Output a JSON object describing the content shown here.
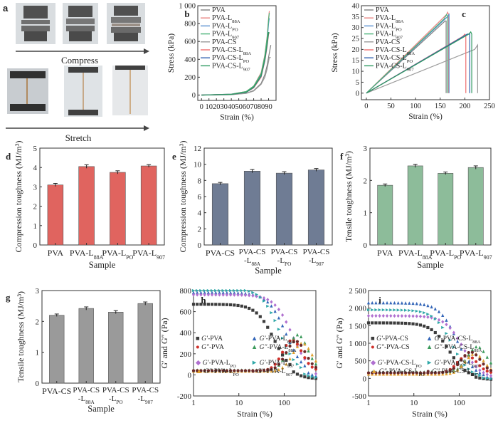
{
  "panel_a": {
    "label": "a",
    "compress_label": "Compress",
    "stretch_label": "Stretch"
  },
  "chart_data": [
    {
      "id": "b",
      "type": "line",
      "panel_label": "b",
      "xlabel": "Strain (%)",
      "ylabel": "Stress (kPa)",
      "xlim": [
        -5,
        100
      ],
      "ylim": [
        -60,
        1000
      ],
      "xticks": [
        0,
        10,
        20,
        30,
        40,
        50,
        60,
        70,
        80,
        90
      ],
      "yticks": [
        0,
        200,
        400,
        600,
        800,
        1000
      ],
      "ytick_labels": [
        "0",
        "200",
        "400",
        "600",
        "800",
        "1 000"
      ],
      "legend_position": "top-left",
      "legend": [
        {
          "base": "PVA",
          "sub": ""
        },
        {
          "base": "PVA-L",
          "sub": "88A"
        },
        {
          "base": "PVA-L",
          "sub": "PO"
        },
        {
          "base": "PVA-L",
          "sub": "907"
        },
        {
          "base": "PVA-CS",
          "sub": ""
        },
        {
          "base": "PVA-CS-L",
          "sub": "88A"
        },
        {
          "base": "PVA-CS-L",
          "sub": "PO"
        },
        {
          "base": "PVA-CS-L",
          "sub": "907"
        }
      ],
      "series": [
        {
          "name": "PVA",
          "color": "#7f7f7f",
          "x": [
            0,
            40,
            60,
            70,
            80,
            85,
            88,
            91,
            93
          ],
          "y": [
            0,
            5,
            20,
            50,
            130,
            230,
            330,
            470,
            560
          ]
        },
        {
          "name": "PVA-L88A",
          "color": "#e8817f",
          "x": [
            0,
            40,
            60,
            70,
            80,
            85,
            88,
            90,
            91
          ],
          "y": [
            0,
            10,
            40,
            100,
            250,
            450,
            650,
            860,
            940
          ]
        },
        {
          "name": "PVA-LPO",
          "color": "#5a8fd0",
          "x": [
            0,
            40,
            60,
            70,
            80,
            85,
            88,
            90,
            91
          ],
          "y": [
            0,
            10,
            35,
            90,
            230,
            420,
            600,
            800,
            860
          ]
        },
        {
          "name": "PVA-L907",
          "color": "#4db37a",
          "x": [
            0,
            40,
            60,
            70,
            80,
            85,
            88,
            90,
            91
          ],
          "y": [
            0,
            10,
            40,
            100,
            240,
            440,
            640,
            840,
            920
          ]
        },
        {
          "name": "PVA-CS",
          "color": "#9a9a9a",
          "x": [
            0,
            40,
            60,
            70,
            80,
            85,
            88,
            91,
            93
          ],
          "y": [
            0,
            5,
            18,
            45,
            120,
            200,
            290,
            420,
            420
          ]
        },
        {
          "name": "PVA-CS-L88A",
          "color": "#f07070",
          "x": [
            0,
            40,
            60,
            70,
            80,
            85,
            88,
            90,
            91
          ],
          "y": [
            0,
            8,
            30,
            80,
            200,
            380,
            540,
            680,
            690
          ]
        },
        {
          "name": "PVA-CS-LPO",
          "color": "#3060b0",
          "x": [
            0,
            40,
            60,
            70,
            80,
            85,
            88,
            90,
            91
          ],
          "y": [
            0,
            8,
            30,
            85,
            210,
            390,
            560,
            700,
            700
          ]
        },
        {
          "name": "PVA-CS-L907",
          "color": "#2e9a60",
          "x": [
            0,
            40,
            60,
            70,
            80,
            85,
            88,
            90,
            91
          ],
          "y": [
            0,
            8,
            32,
            88,
            215,
            400,
            570,
            700,
            700
          ]
        }
      ]
    },
    {
      "id": "c",
      "type": "line",
      "panel_label": "c",
      "xlabel": "Strain (%)",
      "ylabel": "Stress (kPa)",
      "xlim": [
        -10,
        250
      ],
      "ylim": [
        -3,
        40
      ],
      "xticks": [
        0,
        50,
        100,
        150,
        200,
        250
      ],
      "yticks": [
        0,
        5,
        10,
        15,
        20,
        25,
        30,
        35,
        40
      ],
      "legend_position": "top-left",
      "legend": [
        {
          "base": "PVA",
          "sub": ""
        },
        {
          "base": "PVA-L",
          "sub": "88A"
        },
        {
          "base": "PVA-L",
          "sub": "PO"
        },
        {
          "base": "PVA-L",
          "sub": "907"
        },
        {
          "base": "PVA-CS",
          "sub": ""
        },
        {
          "base": "PVA-CS-L",
          "sub": "88A"
        },
        {
          "base": "PVA-CS-L",
          "sub": "PO"
        },
        {
          "base": "PVA-CS-L",
          "sub": "907"
        }
      ],
      "series": [
        {
          "name": "PVA",
          "color": "#7f7f7f",
          "x": [
            0,
            160,
            162,
            162
          ],
          "y": [
            0,
            33,
            33,
            0
          ]
        },
        {
          "name": "PVA-L88A",
          "color": "#e8817f",
          "x": [
            0,
            163,
            165,
            167,
            167
          ],
          "y": [
            0,
            36,
            37,
            36,
            0
          ]
        },
        {
          "name": "PVA-LPO",
          "color": "#5a8fd0",
          "x": [
            0,
            165,
            168,
            168
          ],
          "y": [
            0,
            35,
            36,
            0
          ]
        },
        {
          "name": "PVA-L907",
          "color": "#4db37a",
          "x": [
            0,
            158,
            163,
            165,
            165
          ],
          "y": [
            0,
            34,
            36,
            35,
            0
          ]
        },
        {
          "name": "PVA-CS",
          "color": "#9a9a9a",
          "x": [
            0,
            220,
            226,
            226
          ],
          "y": [
            0,
            20,
            22,
            0
          ]
        },
        {
          "name": "PVA-CS-L88A",
          "color": "#f07070",
          "x": [
            0,
            196,
            200,
            202,
            202
          ],
          "y": [
            0,
            26,
            27,
            26,
            0
          ]
        },
        {
          "name": "PVA-CS-LPO",
          "color": "#3060b0",
          "x": [
            0,
            205,
            210,
            210
          ],
          "y": [
            0,
            27,
            27,
            0
          ]
        },
        {
          "name": "PVA-CS-L907",
          "color": "#2e9a60",
          "x": [
            0,
            208,
            212,
            214,
            214
          ],
          "y": [
            0,
            27,
            28,
            27,
            0
          ]
        }
      ]
    },
    {
      "id": "d",
      "type": "bar",
      "panel_label": "d",
      "ylabel": "Compression toughness (MJ/m³)",
      "xlabel": "Sample",
      "ylim": [
        0,
        5
      ],
      "yticks": [
        0,
        1,
        2,
        3,
        4,
        5
      ],
      "color": "#e0645f",
      "categories": [
        {
          "base": "PVA",
          "sub": ""
        },
        {
          "base": "PVA-L",
          "sub": "88A"
        },
        {
          "base": "PVA-L",
          "sub": "PO"
        },
        {
          "base": "PVA-L",
          "sub": "907"
        }
      ],
      "values": [
        3.1,
        4.05,
        3.75,
        4.08
      ],
      "errors": [
        0.08,
        0.09,
        0.08,
        0.07
      ]
    },
    {
      "id": "e",
      "type": "bar",
      "panel_label": "e",
      "ylabel": "Compression toughness (MJ/m³)",
      "xlabel": "Sample",
      "ylim": [
        0,
        12
      ],
      "yticks": [
        0,
        2,
        4,
        6,
        8,
        10,
        12
      ],
      "color": "#6f7c94",
      "categories": [
        {
          "base": "PVA-CS",
          "sub": ""
        },
        {
          "base": "PVA-CS",
          "line2": "-L",
          "sub": "88A"
        },
        {
          "base": "PVA-CS",
          "line2": "-L",
          "sub": "PO"
        },
        {
          "base": "PVA-CS",
          "line2": "-L",
          "sub": "907"
        }
      ],
      "values": [
        7.6,
        9.15,
        8.9,
        9.3
      ],
      "errors": [
        0.15,
        0.2,
        0.18,
        0.17
      ]
    },
    {
      "id": "f",
      "type": "bar",
      "panel_label": "f",
      "ylabel": "Tensile toughness (MJ/m³)",
      "xlabel": "Sample",
      "ylim": [
        0,
        3
      ],
      "yticks": [
        0,
        1,
        2,
        3
      ],
      "color": "#8dbc9a",
      "categories": [
        {
          "base": "PVA",
          "sub": ""
        },
        {
          "base": "PVA-L",
          "sub": "88A"
        },
        {
          "base": "PVA-L",
          "sub": "PO"
        },
        {
          "base": "PVA-L",
          "sub": "907"
        }
      ],
      "values": [
        1.85,
        2.45,
        2.22,
        2.4
      ],
      "errors": [
        0.04,
        0.05,
        0.04,
        0.05
      ]
    },
    {
      "id": "g",
      "type": "bar",
      "panel_label": "g",
      "ylabel": "Tensile toughness (MJ/m³)",
      "xlabel": "Sample",
      "ylim": [
        0,
        3
      ],
      "yticks": [
        0,
        1,
        2,
        3
      ],
      "color": "#9a9a9a",
      "categories": [
        {
          "base": "PVA-CS",
          "sub": ""
        },
        {
          "base": "PVA-CS",
          "line2": "-L",
          "sub": "88A"
        },
        {
          "base": "PVA-CS",
          "line2": "-L",
          "sub": "PO"
        },
        {
          "base": "PVA-CS",
          "line2": "-L",
          "sub": "907"
        }
      ],
      "values": [
        2.2,
        2.42,
        2.3,
        2.58
      ],
      "errors": [
        0.04,
        0.05,
        0.05,
        0.05
      ]
    },
    {
      "id": "h",
      "type": "scatter",
      "panel_label": "h",
      "xlabel": "Strain (%)",
      "ylabel": "G′ and G″ (Pa)",
      "xscale": "log",
      "xlim": [
        1,
        500
      ],
      "ylim": [
        -200,
        800
      ],
      "xticks": [
        1,
        10,
        100
      ],
      "yticks": [
        -200,
        0,
        200,
        400,
        600,
        800
      ],
      "legend_position": "lower-left",
      "legend": [
        {
          "sym": "■",
          "color": "#3c3c3c",
          "pre": "G′",
          "mid": "-PVA",
          "sub": ""
        },
        {
          "sym": "▲",
          "color": "#3466b8",
          "pre": "G′",
          "mid": "-PVA-L",
          "sub": "88A"
        },
        {
          "sym": "●",
          "color": "#d0302a",
          "pre": "G″",
          "mid": "-PVA",
          "sub": ""
        },
        {
          "sym": "▲",
          "color": "#3a9a5a",
          "pre": "G″",
          "mid": "-PVA-L",
          "sub": "88A"
        },
        {
          "sym": "◆",
          "color": "#b070d0",
          "pre": "G′",
          "mid": "-PVA-L",
          "sub": "PO"
        },
        {
          "sym": "►",
          "color": "#30a8a8",
          "pre": "G′",
          "mid": "-PVA-L",
          "sub": "907"
        },
        {
          "sym": "▲",
          "color": "#e0a030",
          "pre": "G″",
          "mid": "-PVA-L",
          "sub": "PO"
        },
        {
          "sym": "●",
          "color": "#6a2a2a",
          "pre": "G″",
          "mid": "-PVA-L",
          "sub": "907"
        }
      ],
      "series": [
        {
          "name": "G′-PVA",
          "color": "#3c3c3c",
          "shape": "square",
          "kind": "Gp",
          "plateau": 670,
          "drop": 60,
          "end": 150
        },
        {
          "name": "G′-PVA-L88A",
          "color": "#3466b8",
          "shape": "triangle",
          "kind": "Gp",
          "plateau": 780,
          "drop": 110,
          "end": 300
        },
        {
          "name": "G′-PVA-LPO",
          "color": "#b070d0",
          "shape": "diamond",
          "kind": "Gp",
          "plateau": 760,
          "drop": 150,
          "end": 420
        },
        {
          "name": "G′-PVA-L907",
          "color": "#30a8a8",
          "shape": "tri-right",
          "kind": "Gp",
          "plateau": 820,
          "drop": 80,
          "end": 250
        },
        {
          "name": "G″-PVA",
          "color": "#d0302a",
          "shape": "circle",
          "kind": "Gpp",
          "base": 40,
          "peak": 330,
          "peakx": 150
        },
        {
          "name": "G″-PVA-L88A",
          "color": "#3a9a5a",
          "shape": "triangle",
          "kind": "Gpp",
          "base": 45,
          "peak": 380,
          "peakx": 200
        },
        {
          "name": "G″-PVA-LPO",
          "color": "#e0a030",
          "shape": "triangle",
          "kind": "Gpp",
          "base": 35,
          "peak": 300,
          "peakx": 250
        },
        {
          "name": "G″-PVA-L907",
          "color": "#6a2a2a",
          "shape": "circle",
          "kind": "Gpp",
          "base": 40,
          "peak": 320,
          "peakx": 180
        }
      ]
    },
    {
      "id": "i",
      "type": "scatter",
      "panel_label": "i",
      "xlabel": "Strain (%)",
      "ylabel": "G′ and G″ (Pa)",
      "xscale": "log",
      "xlim": [
        1,
        500
      ],
      "ylim": [
        -500,
        2500
      ],
      "xticks": [
        1,
        10,
        100
      ],
      "yticks": [
        -500,
        0,
        500,
        1000,
        1500,
        2000,
        2500
      ],
      "ytick_labels": [
        "-500",
        "0",
        "500",
        "1 000",
        "1 500",
        "2 000",
        "2 500"
      ],
      "legend_position": "lower-left",
      "legend": [
        {
          "sym": "■",
          "color": "#3c3c3c",
          "pre": "G′",
          "mid": "-PVA-CS",
          "sub": ""
        },
        {
          "sym": "▲",
          "color": "#3466b8",
          "pre": "G′",
          "mid": "-PVA-CS-L",
          "sub": "88A"
        },
        {
          "sym": "●",
          "color": "#d0302a",
          "pre": "G″",
          "mid": "-PVA-CS",
          "sub": ""
        },
        {
          "sym": "▲",
          "color": "#3a9a5a",
          "pre": "G″",
          "mid": "-PVA-CS-L",
          "sub": "88A"
        },
        {
          "sym": "◆",
          "color": "#b070d0",
          "pre": "G′",
          "mid": "-PVA-CS-L",
          "sub": "PO"
        },
        {
          "sym": "►",
          "color": "#30a8a8",
          "pre": "G′",
          "mid": "-PVA-CS-L",
          "sub": "907"
        },
        {
          "sym": "▲",
          "color": "#e0a030",
          "pre": "G″",
          "mid": "-PVA-CS-L",
          "sub": "PO"
        },
        {
          "sym": "●",
          "color": "#6a2a2a",
          "pre": "G″",
          "mid": "-PVA-CS-L",
          "sub": "907"
        }
      ],
      "series": [
        {
          "name": "G′-PVA-CS",
          "color": "#3c3c3c",
          "shape": "square",
          "kind": "Gp",
          "plateau": 1580,
          "drop": 60,
          "end": 200
        },
        {
          "name": "G′-PVA-CS-L88A",
          "color": "#3466b8",
          "shape": "triangle",
          "kind": "Gp",
          "plateau": 2150,
          "drop": 90,
          "end": 350
        },
        {
          "name": "G′-PVA-CS-LPO",
          "color": "#b070d0",
          "shape": "diamond",
          "kind": "Gp",
          "plateau": 1780,
          "drop": 120,
          "end": 500
        },
        {
          "name": "G′-PVA-CS-L907",
          "color": "#30a8a8",
          "shape": "tri-right",
          "kind": "Gp",
          "plateau": 1950,
          "drop": 70,
          "end": 300
        },
        {
          "name": "G″-PVA-CS",
          "color": "#d0302a",
          "shape": "circle",
          "kind": "Gpp",
          "base": 150,
          "peak": 650,
          "peakx": 150
        },
        {
          "name": "G″-PVA-CS-L88A",
          "color": "#3a9a5a",
          "shape": "triangle",
          "kind": "Gpp",
          "base": 180,
          "peak": 900,
          "peakx": 250
        },
        {
          "name": "G″-PVA-CS-LPO",
          "color": "#e0a030",
          "shape": "triangle",
          "kind": "Gpp",
          "base": 120,
          "peak": 700,
          "peakx": 220
        },
        {
          "name": "G″-PVA-CS-L907",
          "color": "#6a2a2a",
          "shape": "circle",
          "kind": "Gpp",
          "base": 160,
          "peak": 750,
          "peakx": 180
        }
      ]
    }
  ]
}
